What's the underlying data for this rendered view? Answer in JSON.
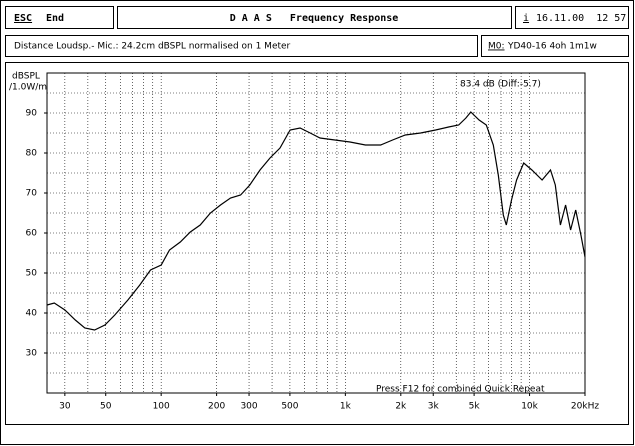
{
  "header": {
    "esc": "ESC",
    "end": "End",
    "title": "D A A S   Frequency Response",
    "info_key": "i",
    "datetime": "16.11.00  12 57",
    "distance": "Distance Loudsp.- Mic.: 24.2cm dBSPL normalised on 1 Meter",
    "model_key": "M0:",
    "model": "YD40-16 4oh 1m1w"
  },
  "chart_data": {
    "type": "line",
    "y_label": "dBSPL",
    "y_label2": "/1.0W/m",
    "annotation": "83.4 dB (Diff:-5.7)",
    "footer": "Press F12 for combined Quick Repeat",
    "color": "#000000",
    "log_x": true,
    "grid": true,
    "x": [
      24,
      26.3,
      30,
      34.2,
      38.5,
      43.5,
      49.5,
      56,
      66,
      76.6,
      87.5,
      100,
      111,
      127,
      144,
      163,
      185,
      210,
      238,
      270,
      303,
      344,
      390,
      442,
      501,
      568,
      644,
      728,
      878,
      1060,
      1285,
      1555,
      1805,
      2115,
      2560,
      3090,
      3635,
      4124,
      4510,
      4800,
      5320,
      5820,
      6355,
      6770,
      7200,
      7480,
      7980,
      8500,
      9300,
      10300,
      11700,
      13000,
      13800,
      14700,
      15700,
      16700,
      17800,
      19000,
      20000
    ],
    "values": [
      42,
      42.5,
      40.75,
      38.25,
      36.25,
      35.75,
      37,
      39.5,
      43.25,
      47,
      50.75,
      52,
      55.75,
      57.75,
      60.25,
      62,
      65,
      67,
      68.75,
      69.5,
      72,
      75.75,
      78.75,
      81.25,
      85.75,
      86.25,
      85,
      83.75,
      83.25,
      82.75,
      82,
      82,
      83.25,
      84.5,
      85,
      85.75,
      86.5,
      87,
      88.75,
      90.25,
      88.25,
      87,
      82,
      74.5,
      64.5,
      62,
      68.25,
      73.25,
      77.5,
      75.75,
      73.25,
      75.75,
      72,
      62,
      67,
      60.75,
      65.75,
      59.5,
      54
    ],
    "xlim": [
      24,
      20000
    ],
    "ylim": [
      20,
      100
    ],
    "xticks": [
      30,
      50,
      100,
      200,
      300,
      500,
      {
        "value": 1000,
        "label": "1k"
      },
      {
        "value": 2000,
        "label": "2k"
      },
      {
        "value": 3000,
        "label": "3k"
      },
      {
        "value": 5000,
        "label": "5k"
      },
      {
        "value": 10000,
        "label": "10k"
      },
      {
        "value": 20000,
        "label": "20kHz"
      }
    ],
    "xgrid": [
      30,
      40,
      50,
      60,
      70,
      80,
      90,
      100,
      200,
      300,
      400,
      500,
      600,
      700,
      800,
      900,
      1000,
      2000,
      3000,
      4000,
      5000,
      6000,
      7000,
      8000,
      9000,
      10000,
      20000
    ],
    "yticks": [
      30,
      40,
      50,
      60,
      70,
      80,
      90
    ],
    "ygrid": [
      25,
      30,
      35,
      40,
      45,
      50,
      55,
      60,
      65,
      70,
      75,
      80,
      85,
      90,
      95
    ]
  }
}
